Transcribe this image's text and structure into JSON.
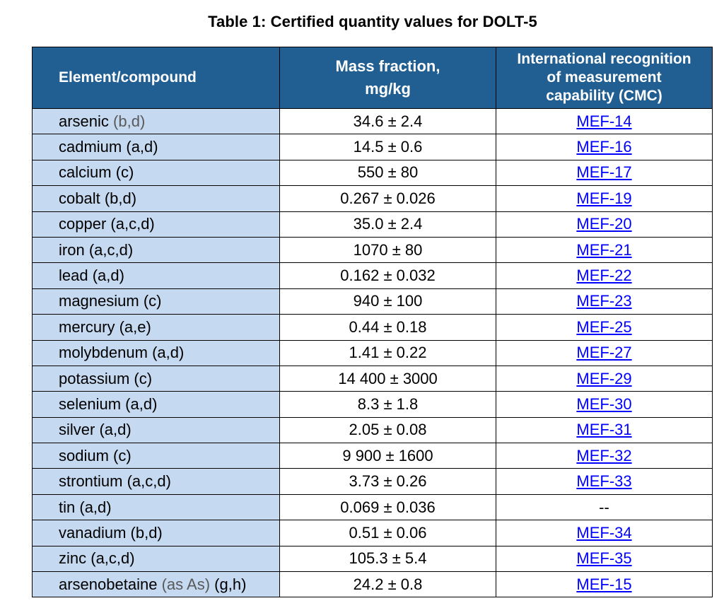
{
  "caption": "Table 1: Certified quantity values for DOLT-5",
  "headers": {
    "element": "Element/compound",
    "mass_line1": "Mass fraction,",
    "mass_line2": "mg/kg",
    "cmc_line1": "International recognition",
    "cmc_line2": "of measurement",
    "cmc_line3": "capability (CMC)"
  },
  "rows": [
    {
      "name": "arsenic",
      "note": "(b,d)",
      "note_gray": true,
      "value": "34.6 ± 2.4",
      "cmc": "MEF-14",
      "cmc_link": true
    },
    {
      "name": "cadmium",
      "note": "(a,d)",
      "note_gray": false,
      "value": "14.5 ± 0.6",
      "cmc": "MEF-16",
      "cmc_link": true
    },
    {
      "name": "calcium",
      "note": "(c)",
      "note_gray": false,
      "value": "550 ± 80",
      "cmc": "MEF-17",
      "cmc_link": true
    },
    {
      "name": "cobalt",
      "note": "(b,d)",
      "note_gray": false,
      "value": "0.267 ± 0.026",
      "cmc": "MEF-19",
      "cmc_link": true
    },
    {
      "name": "copper",
      "note": "(a,c,d)",
      "note_gray": false,
      "value": "35.0 ± 2.4",
      "cmc": "MEF-20",
      "cmc_link": true
    },
    {
      "name": "iron",
      "note": "(a,c,d)",
      "note_gray": false,
      "value": "1070 ± 80",
      "cmc": "MEF-21",
      "cmc_link": true
    },
    {
      "name": "lead",
      "note": "(a,d)",
      "note_gray": false,
      "value": "0.162 ± 0.032",
      "cmc": "MEF-22",
      "cmc_link": true
    },
    {
      "name": "magnesium",
      "note": "(c)",
      "note_gray": false,
      "value": "940 ± 100",
      "cmc": "MEF-23",
      "cmc_link": true
    },
    {
      "name": "mercury",
      "note": "(a,e)",
      "note_gray": false,
      "value": "0.44 ± 0.18",
      "cmc": "MEF-25",
      "cmc_link": true
    },
    {
      "name": "molybdenum",
      "note": "(a,d)",
      "note_gray": false,
      "value": "1.41 ± 0.22",
      "cmc": "MEF-27",
      "cmc_link": true
    },
    {
      "name": "potassium",
      "note": "(c)",
      "note_gray": false,
      "value": "14 400 ± 3000",
      "cmc": "MEF-29",
      "cmc_link": true
    },
    {
      "name": "selenium",
      "note": "(a,d)",
      "note_gray": false,
      "value": "8.3 ± 1.8",
      "cmc": "MEF-30",
      "cmc_link": true
    },
    {
      "name": "silver",
      "note": "(a,d)",
      "note_gray": false,
      "value": "2.05 ± 0.08",
      "cmc": "MEF-31",
      "cmc_link": true
    },
    {
      "name": "sodium",
      "note": "(c)",
      "note_gray": false,
      "value": "9 900 ± 1600",
      "cmc": "MEF-32",
      "cmc_link": true
    },
    {
      "name": "strontium",
      "note": "(a,c,d)",
      "note_gray": false,
      "value": "3.73 ± 0.26",
      "cmc": "MEF-33",
      "cmc_link": true
    },
    {
      "name": "tin",
      "note": "(a,d)",
      "note_gray": false,
      "value": "0.069 ± 0.036",
      "cmc": "--",
      "cmc_link": false
    },
    {
      "name": "vanadium",
      "note": "(b,d)",
      "note_gray": false,
      "value": "0.51 ± 0.06",
      "cmc": "MEF-34",
      "cmc_link": true
    },
    {
      "name": "zinc",
      "note": "(a,c,d)",
      "note_gray": false,
      "value": "105.3 ± 5.4",
      "cmc": "MEF-35",
      "cmc_link": true
    },
    {
      "name": "arsenobetaine",
      "name_suffix": "(as As)",
      "note": "(g,h)",
      "note_gray": false,
      "value": "24.2 ± 0.8",
      "cmc": "MEF-15",
      "cmc_link": true
    }
  ],
  "colors": {
    "header_bg": "#215e91",
    "element_col_bg": "#c5d9f1",
    "link": "#0000ff"
  }
}
